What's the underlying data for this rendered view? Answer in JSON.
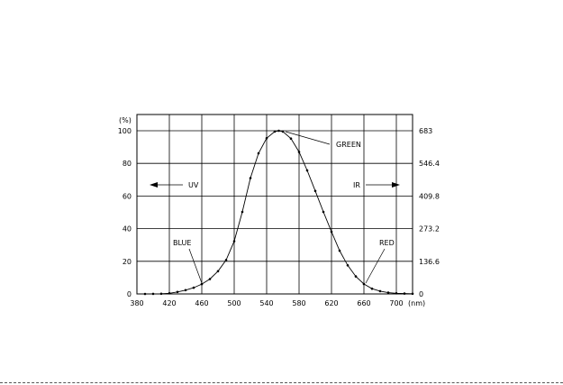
{
  "chart_data": {
    "type": "line",
    "x_unit": "(nm)",
    "y_unit_left": "(%)",
    "xlim": [
      380,
      720
    ],
    "ylim": [
      0,
      100
    ],
    "x_ticks": [
      380,
      420,
      460,
      500,
      540,
      580,
      620,
      660,
      700
    ],
    "y_ticks_left": [
      0,
      20,
      40,
      60,
      80,
      100
    ],
    "y_ticks_right": [
      "0",
      "136.6",
      "273.2",
      "409.8",
      "546.4",
      "683"
    ],
    "grid": true,
    "series": [
      {
        "x": [
          390,
          400,
          410,
          420,
          430,
          440,
          450,
          460,
          470,
          480,
          490,
          500,
          510,
          520,
          530,
          540,
          550,
          555,
          560,
          570,
          580,
          590,
          600,
          610,
          620,
          630,
          640,
          650,
          660,
          670,
          680,
          690,
          700,
          710,
          720
        ],
        "y": [
          0.01,
          0.04,
          0.1,
          0.4,
          1.2,
          2.3,
          3.8,
          6,
          9.1,
          13.9,
          20.8,
          32.3,
          50.3,
          71,
          86.2,
          95.4,
          99.5,
          100,
          99.5,
          95.2,
          87,
          75.7,
          63.1,
          50.3,
          38.1,
          26.5,
          17.5,
          10.7,
          6.1,
          3.2,
          1.7,
          0.8,
          0.4,
          0.2,
          0.1
        ]
      }
    ],
    "annotations": {
      "uv": "UV",
      "ir": "IR",
      "green": "GREEN",
      "blue": "BLUE",
      "red": "RED"
    }
  }
}
